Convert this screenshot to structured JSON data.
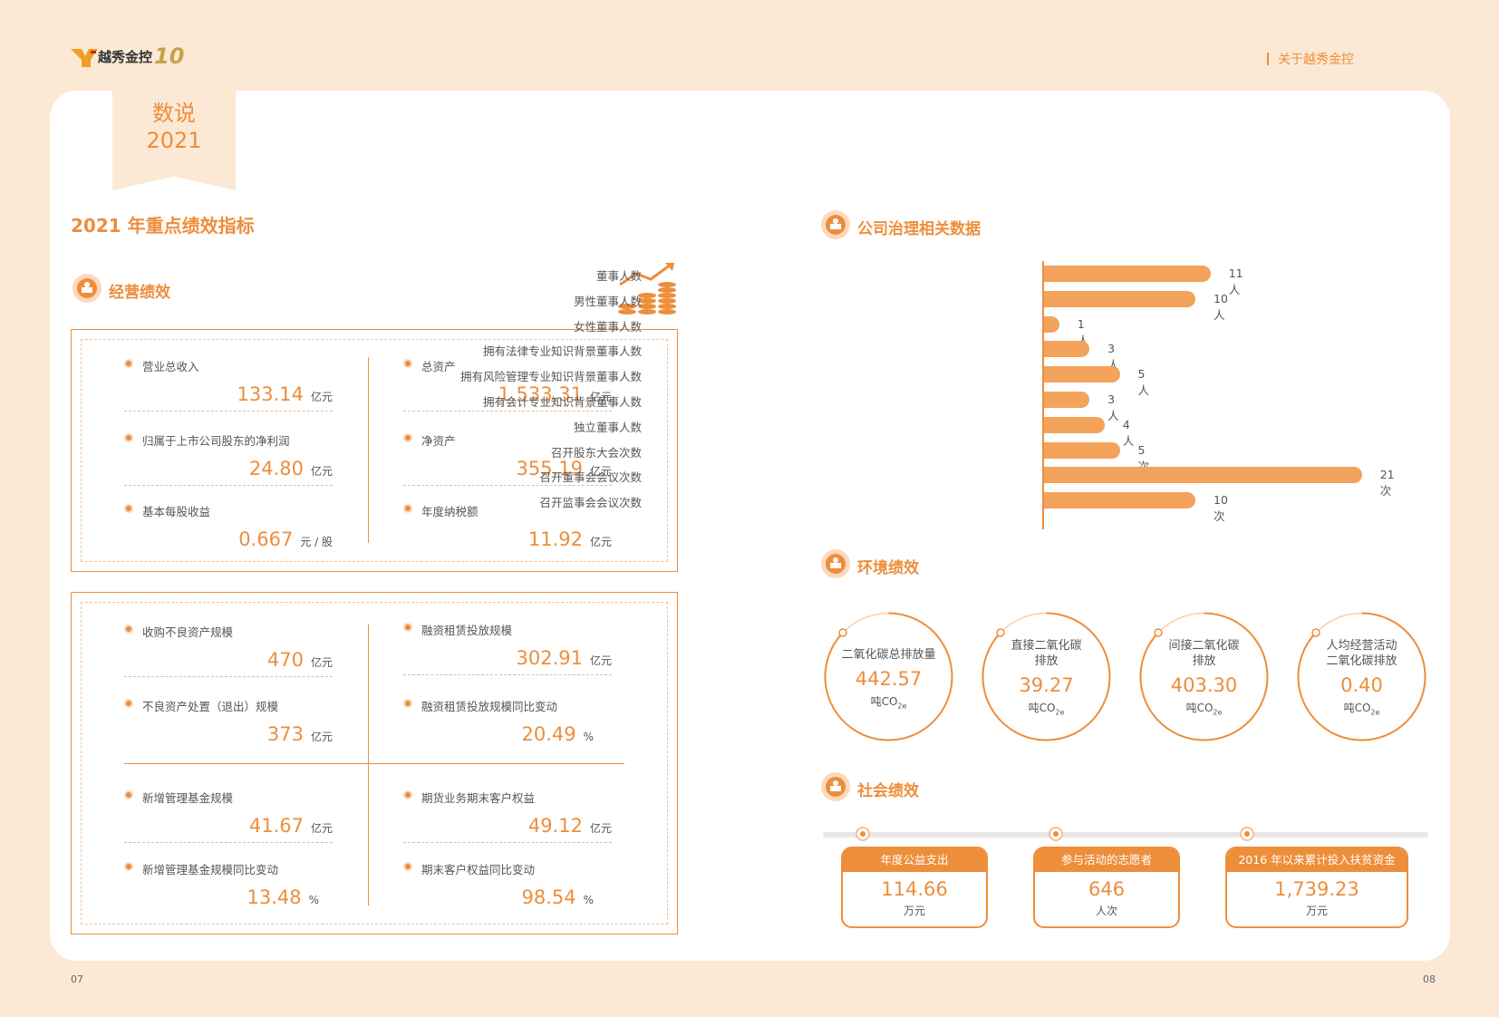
{
  "header": {
    "brand": "越秀金控",
    "anniversary": "10",
    "section": "关于越秀金控"
  },
  "ribbon": {
    "line1": "数说",
    "line2": "2021"
  },
  "main_title": "2021 年重点绩效指标",
  "operations": {
    "title": "经营绩效",
    "panel1": [
      {
        "label": "营业总收入",
        "value": "133.14",
        "unit": "亿元"
      },
      {
        "label": "总资产",
        "value": "1,533.31",
        "unit": "亿元"
      },
      {
        "label": "归属于上市公司股东的净利润",
        "value": "24.80",
        "unit": "亿元"
      },
      {
        "label": "净资产",
        "value": "355.19",
        "unit": "亿元"
      },
      {
        "label": "基本每股收益",
        "value": "0.667",
        "unit": "元 / 股"
      },
      {
        "label": "年度纳税额",
        "value": "11.92",
        "unit": "亿元"
      }
    ],
    "panel2": [
      {
        "label": "收购不良资产规模",
        "value": "470",
        "unit": "亿元"
      },
      {
        "label": "融资租赁投放规模",
        "value": "302.91",
        "unit": "亿元"
      },
      {
        "label": "不良资产处置（退出）规模",
        "value": "373",
        "unit": "亿元"
      },
      {
        "label": "融资租赁投放规模同比变动",
        "value": "20.49",
        "unit": "%"
      },
      {
        "label": "新增管理基金规模",
        "value": "41.67",
        "unit": "亿元"
      },
      {
        "label": "期货业务期末客户权益",
        "value": "49.12",
        "unit": "亿元"
      },
      {
        "label": "新增管理基金规模同比变动",
        "value": "13.48",
        "unit": "%"
      },
      {
        "label": "期末客户权益同比变动",
        "value": "98.54",
        "unit": "%"
      }
    ]
  },
  "governance": {
    "title": "公司治理相关数据"
  },
  "chart_data": {
    "type": "bar",
    "orientation": "horizontal",
    "categories": [
      "董事人数",
      "男性董事人数",
      "女性董事人数",
      "拥有法律专业知识背景董事人数",
      "拥有风险管理专业知识背景董事人数",
      "拥有会计专业知识背景董事人数",
      "独立董事人数",
      "召开股东大会次数",
      "召开董事会会议次数",
      "召开监事会会议次数"
    ],
    "values": [
      11,
      10,
      1,
      3,
      5,
      3,
      4,
      5,
      21,
      10
    ],
    "value_labels": [
      "11 人",
      "10 人",
      "1 人",
      "3 人",
      "5 人",
      "3 人",
      "4 人",
      "5 次",
      "21 次",
      "10 次"
    ],
    "colors": {
      "bar": "#f3a35c"
    }
  },
  "environment": {
    "title": "环境绩效",
    "items": [
      {
        "label": "二氧化碳总排放量",
        "value": "442.57",
        "unit": "吨CO",
        "sub": "2e"
      },
      {
        "label": "直接二氧化碳\n排放",
        "value": "39.27",
        "unit": "吨CO",
        "sub": "2e"
      },
      {
        "label": "间接二氧化碳\n排放",
        "value": "403.30",
        "unit": "吨CO",
        "sub": "2e"
      },
      {
        "label": "人均经营活动\n二氧化碳排放",
        "value": "0.40",
        "unit": "吨CO",
        "sub": "2e"
      }
    ]
  },
  "social": {
    "title": "社会绩效",
    "items": [
      {
        "label": "年度公益支出",
        "value": "114.66",
        "unit": "万元"
      },
      {
        "label": "参与活动的志愿者",
        "value": "646",
        "unit": "人次"
      },
      {
        "label": "2016 年以来累计投入扶贫资金",
        "value": "1,739.23",
        "unit": "万元"
      }
    ]
  },
  "pages": {
    "left": "07",
    "right": "08"
  },
  "colors": {
    "accent": "#ed8e3b",
    "background": "#fbe9d5",
    "bar": "#f3a35c"
  }
}
